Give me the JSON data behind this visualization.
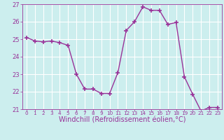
{
  "x": [
    0,
    1,
    2,
    3,
    4,
    5,
    6,
    7,
    8,
    9,
    10,
    11,
    12,
    13,
    14,
    15,
    16,
    17,
    18,
    19,
    20,
    21,
    22,
    23
  ],
  "y": [
    25.1,
    24.9,
    24.85,
    24.9,
    24.8,
    24.65,
    23.0,
    22.15,
    22.15,
    21.9,
    21.9,
    23.1,
    25.5,
    26.0,
    26.85,
    26.65,
    26.65,
    25.85,
    25.95,
    22.85,
    21.85,
    20.9,
    21.1,
    21.1
  ],
  "line_color": "#993399",
  "marker": "+",
  "marker_size": 4,
  "marker_linewidth": 1.2,
  "background_color": "#cceeee",
  "grid_color": "#ffffff",
  "xlabel": "Windchill (Refroidissement éolien,°C)",
  "xlabel_color": "#993399",
  "tick_color": "#993399",
  "label_color": "#993399",
  "ylim": [
    21,
    27
  ],
  "yticks": [
    21,
    22,
    23,
    24,
    25,
    26,
    27
  ],
  "xticks": [
    0,
    1,
    2,
    3,
    4,
    5,
    6,
    7,
    8,
    9,
    10,
    11,
    12,
    13,
    14,
    15,
    16,
    17,
    18,
    19,
    20,
    21,
    22,
    23
  ],
  "xtick_fontsize": 5.2,
  "ytick_fontsize": 6.0,
  "xlabel_fontsize": 7.0,
  "linewidth": 1.0
}
